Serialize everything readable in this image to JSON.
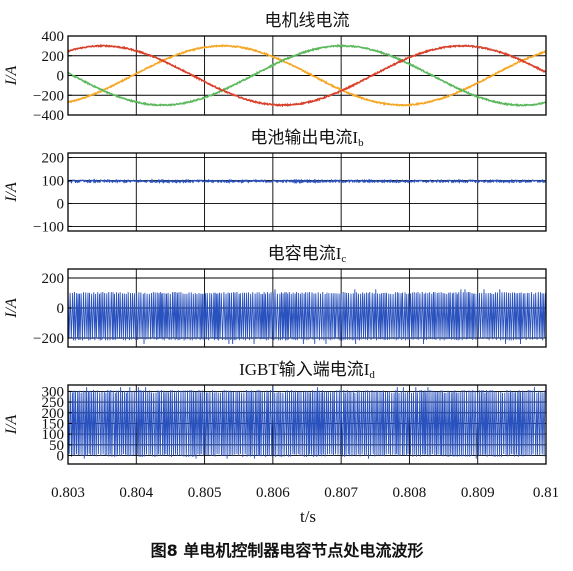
{
  "figure": {
    "caption": "图8   单电机控制器电容节点处电流波形"
  },
  "chart_data": [
    {
      "type": "line",
      "title": "电机线电流",
      "title_subscript": "",
      "ylabel": "I/A",
      "ylim": [
        -400,
        400
      ],
      "yticks": [
        "400",
        "200",
        "0",
        "−200",
        "−400"
      ],
      "ytick_values": [
        400,
        200,
        0,
        -200,
        -400
      ],
      "xlim": [
        0.803,
        0.81
      ],
      "grid": true,
      "x_tick_labels_shown": false,
      "series": [
        {
          "kind": "sine",
          "color": "#F5A623",
          "amplitude": 300,
          "frequency_hz": 190,
          "phase_deg": 90,
          "noise": 12
        },
        {
          "kind": "sine",
          "color": "#5CB85C",
          "amplitude": 300,
          "frequency_hz": 190,
          "phase_deg": -30,
          "noise": 12
        },
        {
          "kind": "sine",
          "color": "#D9412B",
          "amplitude": 300,
          "frequency_hz": 190,
          "phase_deg": 210,
          "noise": 12
        }
      ]
    },
    {
      "type": "line",
      "title": "电池输出电流I",
      "title_subscript": "b",
      "ylabel": "I/A",
      "ylim": [
        -120,
        220
      ],
      "yticks": [
        "200",
        "100",
        "0",
        "−100"
      ],
      "ytick_values": [
        200,
        100,
        0,
        -100
      ],
      "xlim": [
        0.803,
        0.81
      ],
      "grid": true,
      "x_tick_labels_shown": false,
      "series": [
        {
          "kind": "noise",
          "color": "#2A52BE",
          "mean": 97,
          "noise": 9
        }
      ]
    },
    {
      "type": "line",
      "title": "电容电流I",
      "title_subscript": "c",
      "ylabel": "I/A",
      "ylim": [
        -260,
        260
      ],
      "yticks": [
        "200",
        "0",
        "−200"
      ],
      "ytick_values": [
        200,
        0,
        -200
      ],
      "xlim": [
        0.803,
        0.81
      ],
      "grid": true,
      "x_tick_labels_shown": false,
      "series": [
        {
          "kind": "switching",
          "color": "#2A52BE",
          "high": 100,
          "low": -210,
          "spike": 125,
          "dip": -240,
          "period_s": 2.85e-05
        }
      ]
    },
    {
      "type": "line",
      "title": "IGBT输入端电流I",
      "title_subscript": "d",
      "ylabel": "I/A",
      "ylim": [
        -40,
        330
      ],
      "yticks": [
        "300",
        "250",
        "200",
        "150",
        "100",
        "50",
        "0"
      ],
      "ytick_values": [
        300,
        250,
        200,
        150,
        100,
        50,
        0
      ],
      "xlim": [
        0.803,
        0.81
      ],
      "grid": true,
      "x_tick_labels_shown": true,
      "x_ticks": [
        0.803,
        0.804,
        0.805,
        0.806,
        0.807,
        0.808,
        0.809,
        0.81
      ],
      "x_tick_labels": [
        "0.803",
        "0.804",
        "0.805",
        "0.806",
        "0.807",
        "0.808",
        "0.809",
        "0.81"
      ],
      "xlabel": "t/s",
      "series": [
        {
          "kind": "switching",
          "color": "#2A52BE",
          "high": 300,
          "low": 0,
          "spike": 320,
          "dip": -15,
          "period_s": 2.85e-05
        }
      ]
    }
  ]
}
